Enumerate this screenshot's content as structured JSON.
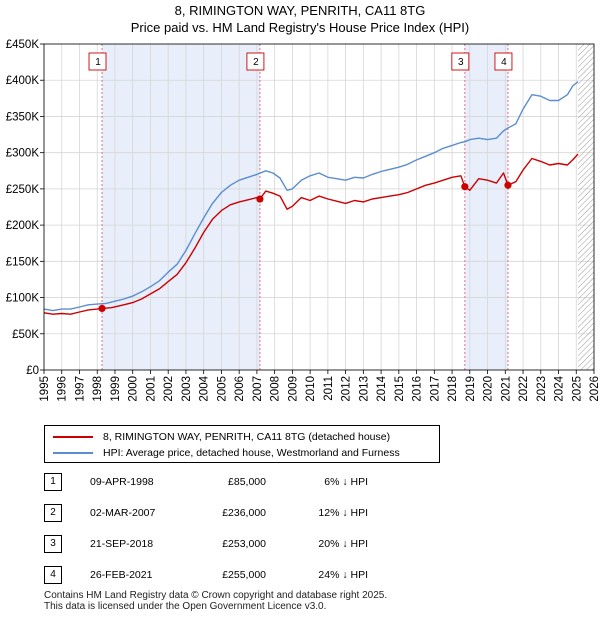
{
  "chart_data": {
    "type": "line",
    "title": "8, RIMINGTON WAY, PENRITH, CA11 8TG",
    "subtitle": "Price paid vs. HM Land Registry's House Price Index (HPI)",
    "xlim": [
      1995,
      2026
    ],
    "ylim": [
      0,
      450000
    ],
    "x_ticks": [
      "1995",
      "1996",
      "1997",
      "1998",
      "1999",
      "2000",
      "2001",
      "2002",
      "2003",
      "2004",
      "2005",
      "2006",
      "2007",
      "2008",
      "2009",
      "2010",
      "2011",
      "2012",
      "2013",
      "2014",
      "2015",
      "2016",
      "2017",
      "2018",
      "2019",
      "2020",
      "2021",
      "2022",
      "2023",
      "2024",
      "2025",
      "2026"
    ],
    "y_ticks": [
      {
        "value": 0,
        "label": "£0"
      },
      {
        "value": 50000,
        "label": "£50K"
      },
      {
        "value": 100000,
        "label": "£100K"
      },
      {
        "value": 150000,
        "label": "£150K"
      },
      {
        "value": 200000,
        "label": "£200K"
      },
      {
        "value": 250000,
        "label": "£250K"
      },
      {
        "value": 300000,
        "label": "£300K"
      },
      {
        "value": 350000,
        "label": "£350K"
      },
      {
        "value": 400000,
        "label": "£400K"
      },
      {
        "value": 450000,
        "label": "£450K"
      }
    ],
    "grid": true,
    "series": [
      {
        "name": "8, RIMINGTON WAY, PENRITH, CA11 8TG (detached house)",
        "color": "#cc0000",
        "points": [
          [
            1995,
            79000
          ],
          [
            1995.5,
            77000
          ],
          [
            1996,
            78000
          ],
          [
            1996.5,
            77000
          ],
          [
            1997,
            80000
          ],
          [
            1997.5,
            83000
          ],
          [
            1998,
            84000
          ],
          [
            1998.27,
            85000
          ],
          [
            1998.8,
            86000
          ],
          [
            1999.5,
            90000
          ],
          [
            2000,
            93000
          ],
          [
            2000.5,
            98000
          ],
          [
            2001,
            105000
          ],
          [
            2001.5,
            112000
          ],
          [
            2002,
            122000
          ],
          [
            2002.5,
            132000
          ],
          [
            2003,
            148000
          ],
          [
            2003.5,
            168000
          ],
          [
            2004,
            190000
          ],
          [
            2004.5,
            208000
          ],
          [
            2005,
            220000
          ],
          [
            2005.5,
            228000
          ],
          [
            2006,
            232000
          ],
          [
            2006.5,
            235000
          ],
          [
            2007,
            238000
          ],
          [
            2007.17,
            236000
          ],
          [
            2007.5,
            247000
          ],
          [
            2007.9,
            244000
          ],
          [
            2008.3,
            240000
          ],
          [
            2008.7,
            222000
          ],
          [
            2009,
            226000
          ],
          [
            2009.5,
            238000
          ],
          [
            2010,
            234000
          ],
          [
            2010.5,
            240000
          ],
          [
            2011,
            236000
          ],
          [
            2011.5,
            233000
          ],
          [
            2012,
            230000
          ],
          [
            2012.5,
            234000
          ],
          [
            2013,
            232000
          ],
          [
            2013.5,
            236000
          ],
          [
            2014,
            238000
          ],
          [
            2014.5,
            240000
          ],
          [
            2015,
            242000
          ],
          [
            2015.5,
            245000
          ],
          [
            2016,
            250000
          ],
          [
            2016.5,
            255000
          ],
          [
            2017,
            258000
          ],
          [
            2017.5,
            262000
          ],
          [
            2018,
            266000
          ],
          [
            2018.5,
            268000
          ],
          [
            2018.72,
            253000
          ],
          [
            2019,
            248000
          ],
          [
            2019.5,
            264000
          ],
          [
            2020,
            262000
          ],
          [
            2020.5,
            258000
          ],
          [
            2020.9,
            272000
          ],
          [
            2021.15,
            255000
          ],
          [
            2021.6,
            260000
          ],
          [
            2022,
            276000
          ],
          [
            2022.5,
            292000
          ],
          [
            2023,
            288000
          ],
          [
            2023.5,
            283000
          ],
          [
            2024,
            285000
          ],
          [
            2024.5,
            283000
          ],
          [
            2024.8,
            290000
          ],
          [
            2025.1,
            298000
          ]
        ]
      },
      {
        "name": "HPI: Average price, detached house, Westmorland and Furness",
        "color": "#5b8dd0",
        "points": [
          [
            1995,
            84000
          ],
          [
            1995.5,
            82000
          ],
          [
            1996,
            84000
          ],
          [
            1996.5,
            84000
          ],
          [
            1997,
            87000
          ],
          [
            1997.5,
            90000
          ],
          [
            1998,
            91000
          ],
          [
            1998.5,
            92000
          ],
          [
            1999,
            95000
          ],
          [
            1999.5,
            98000
          ],
          [
            2000,
            102000
          ],
          [
            2000.5,
            108000
          ],
          [
            2001,
            115000
          ],
          [
            2001.5,
            123000
          ],
          [
            2002,
            135000
          ],
          [
            2002.5,
            146000
          ],
          [
            2003,
            165000
          ],
          [
            2003.5,
            188000
          ],
          [
            2004,
            210000
          ],
          [
            2004.5,
            230000
          ],
          [
            2005,
            245000
          ],
          [
            2005.5,
            255000
          ],
          [
            2006,
            262000
          ],
          [
            2006.5,
            266000
          ],
          [
            2007,
            270000
          ],
          [
            2007.5,
            275000
          ],
          [
            2007.9,
            272000
          ],
          [
            2008.3,
            265000
          ],
          [
            2008.7,
            248000
          ],
          [
            2009,
            250000
          ],
          [
            2009.5,
            262000
          ],
          [
            2010,
            268000
          ],
          [
            2010.5,
            272000
          ],
          [
            2011,
            266000
          ],
          [
            2011.5,
            264000
          ],
          [
            2012,
            262000
          ],
          [
            2012.5,
            266000
          ],
          [
            2013,
            265000
          ],
          [
            2013.5,
            270000
          ],
          [
            2014,
            274000
          ],
          [
            2014.5,
            277000
          ],
          [
            2015,
            280000
          ],
          [
            2015.5,
            284000
          ],
          [
            2016,
            290000
          ],
          [
            2016.5,
            295000
          ],
          [
            2017,
            300000
          ],
          [
            2017.5,
            306000
          ],
          [
            2018,
            310000
          ],
          [
            2018.5,
            314000
          ],
          [
            2018.72,
            315000
          ],
          [
            2019,
            318000
          ],
          [
            2019.5,
            320000
          ],
          [
            2020,
            318000
          ],
          [
            2020.5,
            320000
          ],
          [
            2020.9,
            330000
          ],
          [
            2021.15,
            334000
          ],
          [
            2021.6,
            340000
          ],
          [
            2022,
            360000
          ],
          [
            2022.5,
            380000
          ],
          [
            2023,
            378000
          ],
          [
            2023.5,
            372000
          ],
          [
            2024,
            372000
          ],
          [
            2024.5,
            380000
          ],
          [
            2024.8,
            392000
          ],
          [
            2025.1,
            398000
          ]
        ]
      }
    ],
    "sales": [
      {
        "num": "1",
        "year": 1998.27,
        "price": 85000
      },
      {
        "num": "2",
        "year": 2007.17,
        "price": 236000
      },
      {
        "num": "3",
        "year": 2018.72,
        "price": 253000
      },
      {
        "num": "4",
        "year": 2021.15,
        "price": 255000
      }
    ],
    "shaded_periods": [
      [
        1998.27,
        2007.17
      ],
      [
        2018.72,
        2021.15
      ]
    ],
    "forecast_from": 2025.1
  },
  "legend": {
    "property_label": "8, RIMINGTON WAY, PENRITH, CA11 8TG (detached house)",
    "hpi_label": "HPI: Average price, detached house, Westmorland and Furness"
  },
  "sales_table": [
    {
      "num": "1",
      "date": "09-APR-1998",
      "price": "£85,000",
      "hpi": "6% ↓ HPI"
    },
    {
      "num": "2",
      "date": "02-MAR-2007",
      "price": "£236,000",
      "hpi": "12% ↓ HPI"
    },
    {
      "num": "3",
      "date": "21-SEP-2018",
      "price": "£253,000",
      "hpi": "20% ↓ HPI"
    },
    {
      "num": "4",
      "date": "26-FEB-2021",
      "price": "£255,000",
      "hpi": "24% ↓ HPI"
    }
  ],
  "footer": {
    "line1": "Contains HM Land Registry data © Crown copyright and database right 2025.",
    "line2": "This data is licensed under the Open Government Licence v3.0."
  }
}
